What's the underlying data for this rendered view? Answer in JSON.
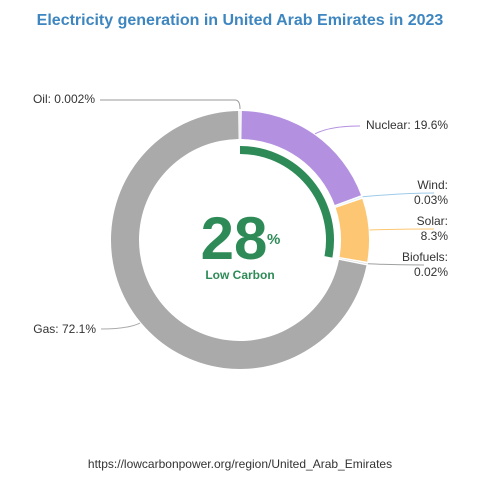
{
  "chart_data": {
    "type": "pie",
    "variant": "donut",
    "title": "Electricity generation in United Arab Emirates in 2023",
    "categories": [
      "Nuclear",
      "Wind",
      "Solar",
      "Biofuels",
      "Gas",
      "Oil"
    ],
    "values": [
      19.6,
      0.03,
      8.3,
      0.02,
      72.1,
      0.002
    ],
    "slice_labels": {
      "Nuclear": [
        "Nuclear: 19.6%"
      ],
      "Wind": [
        "Wind:",
        "0.03%"
      ],
      "Solar": [
        "Solar:",
        "8.3%"
      ],
      "Biofuels": [
        "Biofuels:",
        "0.02%"
      ],
      "Gas": [
        "Gas: 72.1%"
      ],
      "Oil": [
        "Oil: 0.002%"
      ]
    },
    "colors": {
      "Nuclear": "#b491e0",
      "Wind": "#9ecae9",
      "Solar": "#fdc672",
      "Biofuels": "#9fa0a0",
      "Gas": "#aaaaaa",
      "Oil": "#9a9a9a",
      "title": "#3e86c0",
      "low_carbon": "#2e8b57"
    },
    "center": {
      "value": "28",
      "unit": "%",
      "label": "Low Carbon",
      "value_fraction": 0.28
    }
  },
  "footer": {
    "source_url": "https://lowcarbonpower.org/region/United_Arab_Emirates"
  }
}
